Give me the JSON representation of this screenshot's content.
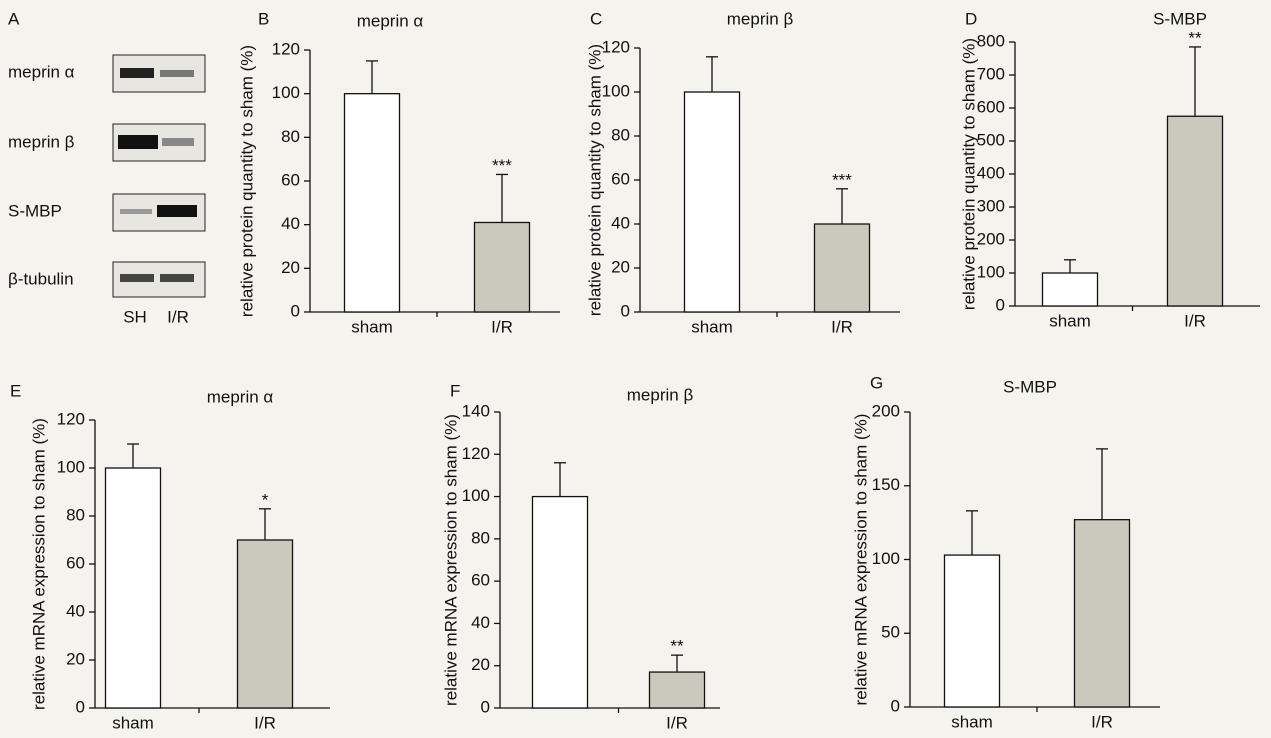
{
  "panel_a": {
    "letter": "A",
    "rows": [
      "meprin α",
      "meprin β",
      "S-MBP",
      "β-tubulin"
    ],
    "lanes": [
      "SH",
      "I/R"
    ]
  },
  "chart_data": [
    {
      "type": "bar",
      "panel": "B",
      "title": "meprin α",
      "y_label": "relative protein quantity to sham (%)",
      "categories": [
        "sham",
        "I/R"
      ],
      "values": [
        100,
        41
      ],
      "errors": [
        15,
        22
      ],
      "value_annotations": [
        null,
        "***"
      ],
      "colors": [
        "#ffffff",
        "#c9cabd"
      ],
      "ylim": [
        0,
        120
      ],
      "yticks": [
        0,
        20,
        40,
        60,
        80,
        100,
        120
      ]
    },
    {
      "type": "bar",
      "panel": "C",
      "title": "meprin β",
      "y_label": "relative protein quantity to sham (%)",
      "categories": [
        "sham",
        "I/R"
      ],
      "values": [
        100,
        40
      ],
      "errors": [
        16,
        16
      ],
      "value_annotations": [
        null,
        "***"
      ],
      "colors": [
        "#ffffff",
        "#c9cabd"
      ],
      "ylim": [
        0,
        120
      ],
      "yticks": [
        0,
        20,
        40,
        60,
        80,
        100,
        120
      ]
    },
    {
      "type": "bar",
      "panel": "D",
      "title": "S-MBP",
      "y_label": "relative protein quantity to sham (%)",
      "categories": [
        "sham",
        "I/R"
      ],
      "values": [
        100,
        575
      ],
      "errors": [
        40,
        210
      ],
      "value_annotations": [
        null,
        "**"
      ],
      "colors": [
        "#ffffff",
        "#c9cabd"
      ],
      "ylim": [
        0,
        800
      ],
      "yticks": [
        0,
        100,
        200,
        300,
        400,
        500,
        600,
        700,
        800
      ]
    },
    {
      "type": "bar",
      "panel": "E",
      "title": "meprin α",
      "y_label": "relative mRNA expression to sham (%)",
      "categories": [
        "sham",
        "I/R"
      ],
      "values": [
        100,
        70
      ],
      "errors": [
        10,
        13
      ],
      "value_annotations": [
        null,
        "*"
      ],
      "colors": [
        "#ffffff",
        "#c9cabd"
      ],
      "ylim": [
        0,
        120
      ],
      "yticks": [
        0,
        20,
        40,
        60,
        80,
        100,
        120
      ]
    },
    {
      "type": "bar",
      "panel": "F",
      "title": "meprin β",
      "y_label": "relative mRNA expression to sham (%)",
      "categories": [
        null,
        "I/R"
      ],
      "values": [
        100,
        17
      ],
      "errors": [
        16,
        8
      ],
      "value_annotations": [
        null,
        "**"
      ],
      "colors": [
        "#ffffff",
        "#c9cabd"
      ],
      "ylim": [
        0,
        140
      ],
      "yticks": [
        0,
        20,
        40,
        60,
        80,
        100,
        120,
        140
      ]
    },
    {
      "type": "bar",
      "panel": "G",
      "title": "S-MBP",
      "y_label": "relative mRNA expression to sham (%)",
      "categories": [
        "sham",
        "I/R"
      ],
      "values": [
        103,
        127
      ],
      "errors": [
        30,
        48
      ],
      "value_annotations": [
        null,
        null
      ],
      "colors": [
        "#ffffff",
        "#c9cabd"
      ],
      "ylim": [
        0,
        200
      ],
      "yticks": [
        0,
        50,
        100,
        150,
        200
      ]
    }
  ]
}
